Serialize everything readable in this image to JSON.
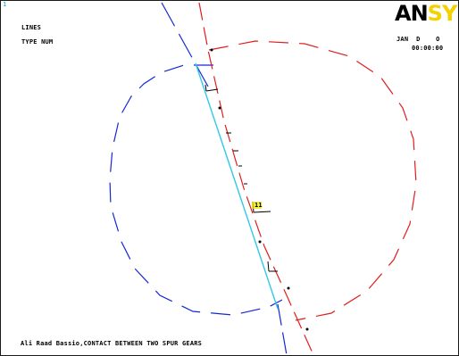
{
  "window": {
    "number": "1",
    "plot_title": "LINES",
    "plot_subtitle": "TYPE NUM"
  },
  "logo": {
    "part1": "AN",
    "part2": "SYS",
    "colors": {
      "an": "#000000",
      "sys": "#f2d200"
    }
  },
  "datetime": {
    "date": "JAN  D    O",
    "time": "00:00:00"
  },
  "footer": {
    "caption": "Ali Raad Bassio,CONTACT BETWEEN TWO SPUR GEARS"
  },
  "labels": {
    "node_label": "11"
  },
  "colors": {
    "gear1": "#1428d2",
    "gear2": "#e01e1e",
    "contact_line": "#33c8e6",
    "target_line": "#000000",
    "label_box": "#f2e600"
  }
}
